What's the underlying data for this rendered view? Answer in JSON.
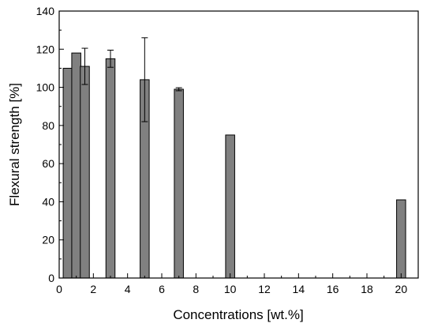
{
  "chart_data": {
    "type": "bar",
    "title": "",
    "xlabel": "Concentrations [wt.%]",
    "ylabel": "Flexural strength [%]",
    "xlim": [
      0,
      21
    ],
    "ylim": [
      0,
      140
    ],
    "x_ticks": [
      0,
      2,
      4,
      6,
      8,
      10,
      12,
      14,
      16,
      18,
      20
    ],
    "y_ticks": [
      0,
      20,
      40,
      60,
      80,
      100,
      120,
      140
    ],
    "grid": false,
    "legend": false,
    "bar_color": "#808080",
    "points": [
      {
        "x": 0.5,
        "y": 110,
        "err": null
      },
      {
        "x": 1.0,
        "y": 118,
        "err": null
      },
      {
        "x": 1.5,
        "y": 111,
        "err": 9.5
      },
      {
        "x": 3.0,
        "y": 115,
        "err": 4.5
      },
      {
        "x": 5.0,
        "y": 104,
        "err": 22
      },
      {
        "x": 7.0,
        "y": 99,
        "err": 0.8
      },
      {
        "x": 10.0,
        "y": 75,
        "err": null
      },
      {
        "x": 20.0,
        "y": 41,
        "err": null
      }
    ]
  }
}
